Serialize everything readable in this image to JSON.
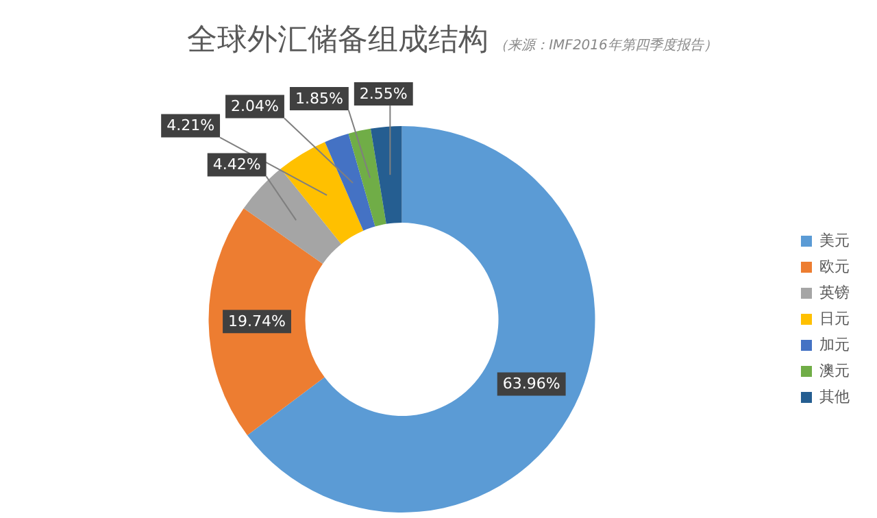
{
  "chart_data": {
    "type": "donut",
    "title": "全球外汇储备组成结构",
    "subtitle": "（来源：IMF2016年第四季度报告）",
    "categories": [
      "美元",
      "欧元",
      "英镑",
      "日元",
      "加元",
      "澳元",
      "其他"
    ],
    "values": [
      63.96,
      19.74,
      4.42,
      4.21,
      2.04,
      1.85,
      2.55
    ],
    "value_labels": [
      "63.96%",
      "19.74%",
      "4.42%",
      "4.21%",
      "2.04%",
      "1.85%",
      "2.55%"
    ],
    "colors": [
      "#5b9bd5",
      "#ed7d31",
      "#a5a5a5",
      "#ffc000",
      "#4472c4",
      "#70ad47",
      "#255e91"
    ],
    "legend": "right"
  }
}
